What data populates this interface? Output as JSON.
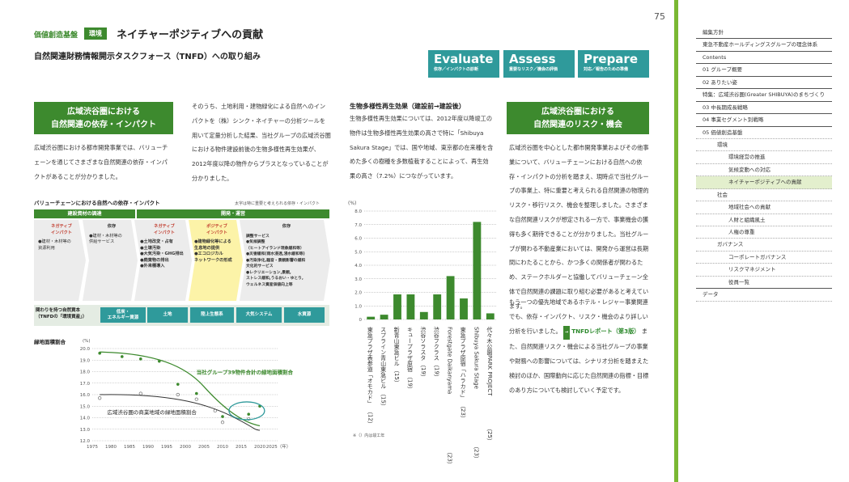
{
  "page_number": "75",
  "header": {
    "category": "価値創造基盤",
    "tag": "環境",
    "title": "ネイチャーポジティブへの貢献",
    "subtitle": "自然関連財務情報開示タスクフォース（TNFD）への取り組み"
  },
  "leap": [
    {
      "big": "Evaluate",
      "small": "依存／インパクトの診断"
    },
    {
      "big": "Assess",
      "small": "重要なリスク／機会の評価"
    },
    {
      "big": "Prepare",
      "small": "対応／報告のための準備"
    }
  ],
  "left": {
    "heading_line1": "広域渋谷圏における",
    "heading_line2": "自然関連の依存・インパクト",
    "para": "広域渋谷圏における都市開発事業では、バリューチェーンを通じてさまざまな自然関連の依存・インパクトがあることが分かりました。"
  },
  "mid": {
    "para": "そのうち、土地利用・建物緑化による自然へのインパクトを（株）シンク・ネイチャーの分析ツールを用いて定量分析した結果、当社グループの広域渋谷圏における物件建設前後の生物多様性再生効果が、2012年度以降の物件からプラスとなっていることが分かりました。"
  },
  "biodiv": {
    "heading": "生物多様性再生効果（建設前→建設後）",
    "para": "生物多様性再生効果については、2012年度以降竣工の物件は生物多様性再生効果の高さで特に「Shibuya Sakura Stage」では、国や地域、東京都の在来種を含めた多くの樹種を多数植栽することによって、再生効果の高さ（7.2%）につながっています。",
    "note": "※（）内は竣工年"
  },
  "right": {
    "heading_line1": "広域渋谷圏における",
    "heading_line2": "自然関連のリスク・機会",
    "para1": "広域渋谷圏を中心とした都市開発事業およびその他事業について、バリューチェーンにおける自然への依存・インパクトの分析を踏まえ、現時点で当社グループの事業上、特に重要と考えられる自然関連の物理的リスク・移行リスク、機会を整理しました。さまざまな自然関連リスクが想定される一方で、事業機会の獲得も多く期待できることが分かりました。当社グループが関わる不動産業においては、開発から運営は長期間にわたることから、かつ多くの関係者が関わるため、ステークホルダーと協働してバリューチェーン全体で自然関連の課題に取り組む必要があると考えています。",
    "para2a": "もう一つの優先地域であるホテル・レジャー事業関連でも、依存・インパクト、リスク・機会のより詳しい分析を行いました。",
    "link": "TNFDレポート（第3版）",
    "para2b": "また、自然関連リスク・機会による当社グループの事業や財務への影響については、シナリオ分析を踏まえた検討のほか、国際動向に応じた自然関連の指標・目標のあり方についても検討していく予定です。"
  },
  "valuechain": {
    "label": "バリューチェーンにおける自然への依存・インパクト",
    "note": "太字は特に重要と考えられる依存・インパクト",
    "bar1": "建設資材の調達",
    "bar2": "開発・運営",
    "cols": [
      {
        "head": "ネガティブ\nインパクト",
        "items": "●建材・木材等の\n資源利用",
        "type": "neg"
      },
      {
        "head": "依存",
        "items": "●建材・木材等の\n供給サービス",
        "type": "dep"
      },
      {
        "head": "ネガティブ\nインパクト",
        "items": "●土地改変・占有\n●土壌汚染\n●大気汚染・GHG排出\n●廃棄物の排出\n●外来種導入",
        "type": "neg"
      },
      {
        "head": "ポジティブ\nインパクト",
        "items": "●建物緑化等による\n生息地の提供\n●エコロジカル\nネットワークの形成",
        "type": "pos"
      },
      {
        "head": "依存",
        "items": "調整サービス\n●気候調整\n（ヒートアイランド現象緩和等）\n●災害緩和(雨水浸透,浸水緩和等)\n●汚染浄化,騒音・景観影響の緩和\n文化的サービス\n●レクリエーション,景観,\nストレス緩和,うるおい・ゆとり,\nウェルネス資産価値向上等",
        "type": "dep"
      }
    ],
    "band_label": "関わりを持つ自然資本\n（TNFDの「環境資産」）",
    "chips": [
      "低炭・\nエネルギー資源",
      "土地",
      "陸上生態系",
      "大気システム",
      "水資源"
    ]
  },
  "sidebar": [
    {
      "label": "編集方針",
      "level": 0,
      "active": false,
      "solid": true
    },
    {
      "label": "東急不動産ホールディングスグループの理念体系",
      "level": 0,
      "active": false,
      "solid": true
    },
    {
      "label": "Contents",
      "level": 0,
      "active": false,
      "solid": true
    },
    {
      "label": "01  グループ概要",
      "level": 0,
      "active": false,
      "solid": true
    },
    {
      "label": "02  ありたい姿",
      "level": 0,
      "active": false,
      "solid": true
    },
    {
      "label": "特集：広域渋谷圏(Greater SHIBUYA)のまちづくり",
      "level": 0,
      "active": false,
      "solid": true
    },
    {
      "label": "03  中長期成長戦略",
      "level": 0,
      "active": false,
      "solid": true
    },
    {
      "label": "04  事業セグメント別戦略",
      "level": 0,
      "active": false,
      "solid": true
    },
    {
      "label": "05  価値創造基盤",
      "level": 0,
      "active": false,
      "solid": false
    },
    {
      "label": "環境",
      "level": 1,
      "active": false,
      "solid": false
    },
    {
      "label": "環境経営の推進",
      "level": 2,
      "active": false,
      "solid": false
    },
    {
      "label": "気候変動への対応",
      "level": 2,
      "active": false,
      "solid": false
    },
    {
      "label": "ネイチャーポジティブへの貢献",
      "level": 2,
      "active": true,
      "solid": false
    },
    {
      "label": "社会",
      "level": 1,
      "active": false,
      "solid": false
    },
    {
      "label": "地域社会への貢献",
      "level": 2,
      "active": false,
      "solid": false
    },
    {
      "label": "人財と組織風土",
      "level": 2,
      "active": false,
      "solid": false
    },
    {
      "label": "人権の尊重",
      "level": 2,
      "active": false,
      "solid": false
    },
    {
      "label": "ガバナンス",
      "level": 1,
      "active": false,
      "solid": false
    },
    {
      "label": "コーポレートガバナンス",
      "level": 2,
      "active": false,
      "solid": false
    },
    {
      "label": "リスクマネジメント",
      "level": 2,
      "active": false,
      "solid": false
    },
    {
      "label": "役員一覧",
      "level": 2,
      "active": false,
      "solid": true
    },
    {
      "label": "データ",
      "level": 0,
      "active": false,
      "solid": false
    }
  ],
  "colors": {
    "green": "#3d8a2e",
    "teal": "#2f9a9b",
    "lime": "#7ab833"
  },
  "chart_data": [
    {
      "type": "bar",
      "unit": "(%)",
      "ylim": [
        0,
        8.0
      ],
      "yticks": [
        "0",
        "1.0",
        "2.0",
        "3.0",
        "4.0",
        "5.0",
        "6.0",
        "7.0",
        "8.0"
      ],
      "categories": [
        "東急プラザ表参道「オモカド」",
        "スプライン青山東急ビル",
        "新青山東急ビル",
        "キュープラザ原宿",
        "渋谷ソラスタ",
        "渋谷フクラス",
        "Forestgate Daikanyama",
        "東急プラザ原宿「ハラカド」",
        "Shibuya Sakura Stage",
        "代々木公園PARK PROJECT"
      ],
      "years": [
        "（12）",
        "（15）",
        "（15）",
        "（19）",
        "（19）",
        "（19）",
        "（23）",
        "（23）",
        "（23）",
        "（25）"
      ],
      "values": [
        0.2,
        0.35,
        1.85,
        1.85,
        0.55,
        1.85,
        3.2,
        1.55,
        7.2,
        0.45
      ]
    },
    {
      "type": "scatter",
      "title": "緑地面積割合",
      "unit": "(%)",
      "xlim": [
        1975,
        2025
      ],
      "ylim": [
        12.0,
        20.0
      ],
      "xticks": [
        "1975",
        "1980",
        "1985",
        "1990",
        "1995",
        "2000",
        "2005",
        "2010",
        "2015",
        "2020",
        "2025（年）"
      ],
      "yticks": [
        "12.0",
        "13.0",
        "14.0",
        "15.0",
        "16.0",
        "17.0",
        "18.0",
        "19.0",
        "20.0"
      ],
      "series": [
        {
          "name": "当社グループ39物件合計の緑地面積割合",
          "x": [
            1977,
            1983,
            1988,
            1993,
            1998,
            2003,
            2010,
            2017,
            2020
          ],
          "y": [
            19.6,
            19.3,
            19.1,
            18.9,
            16.9,
            16.1,
            14.1,
            14.3,
            15.0
          ]
        },
        {
          "name": "広域渋谷圏の商業地域の緑地面積割合",
          "x": [
            1977,
            1988,
            1998,
            2003,
            2008,
            2010,
            2017
          ],
          "y": [
            15.7,
            16.1,
            16.0,
            15.6,
            14.6,
            13.6,
            13.9
          ]
        }
      ]
    }
  ]
}
